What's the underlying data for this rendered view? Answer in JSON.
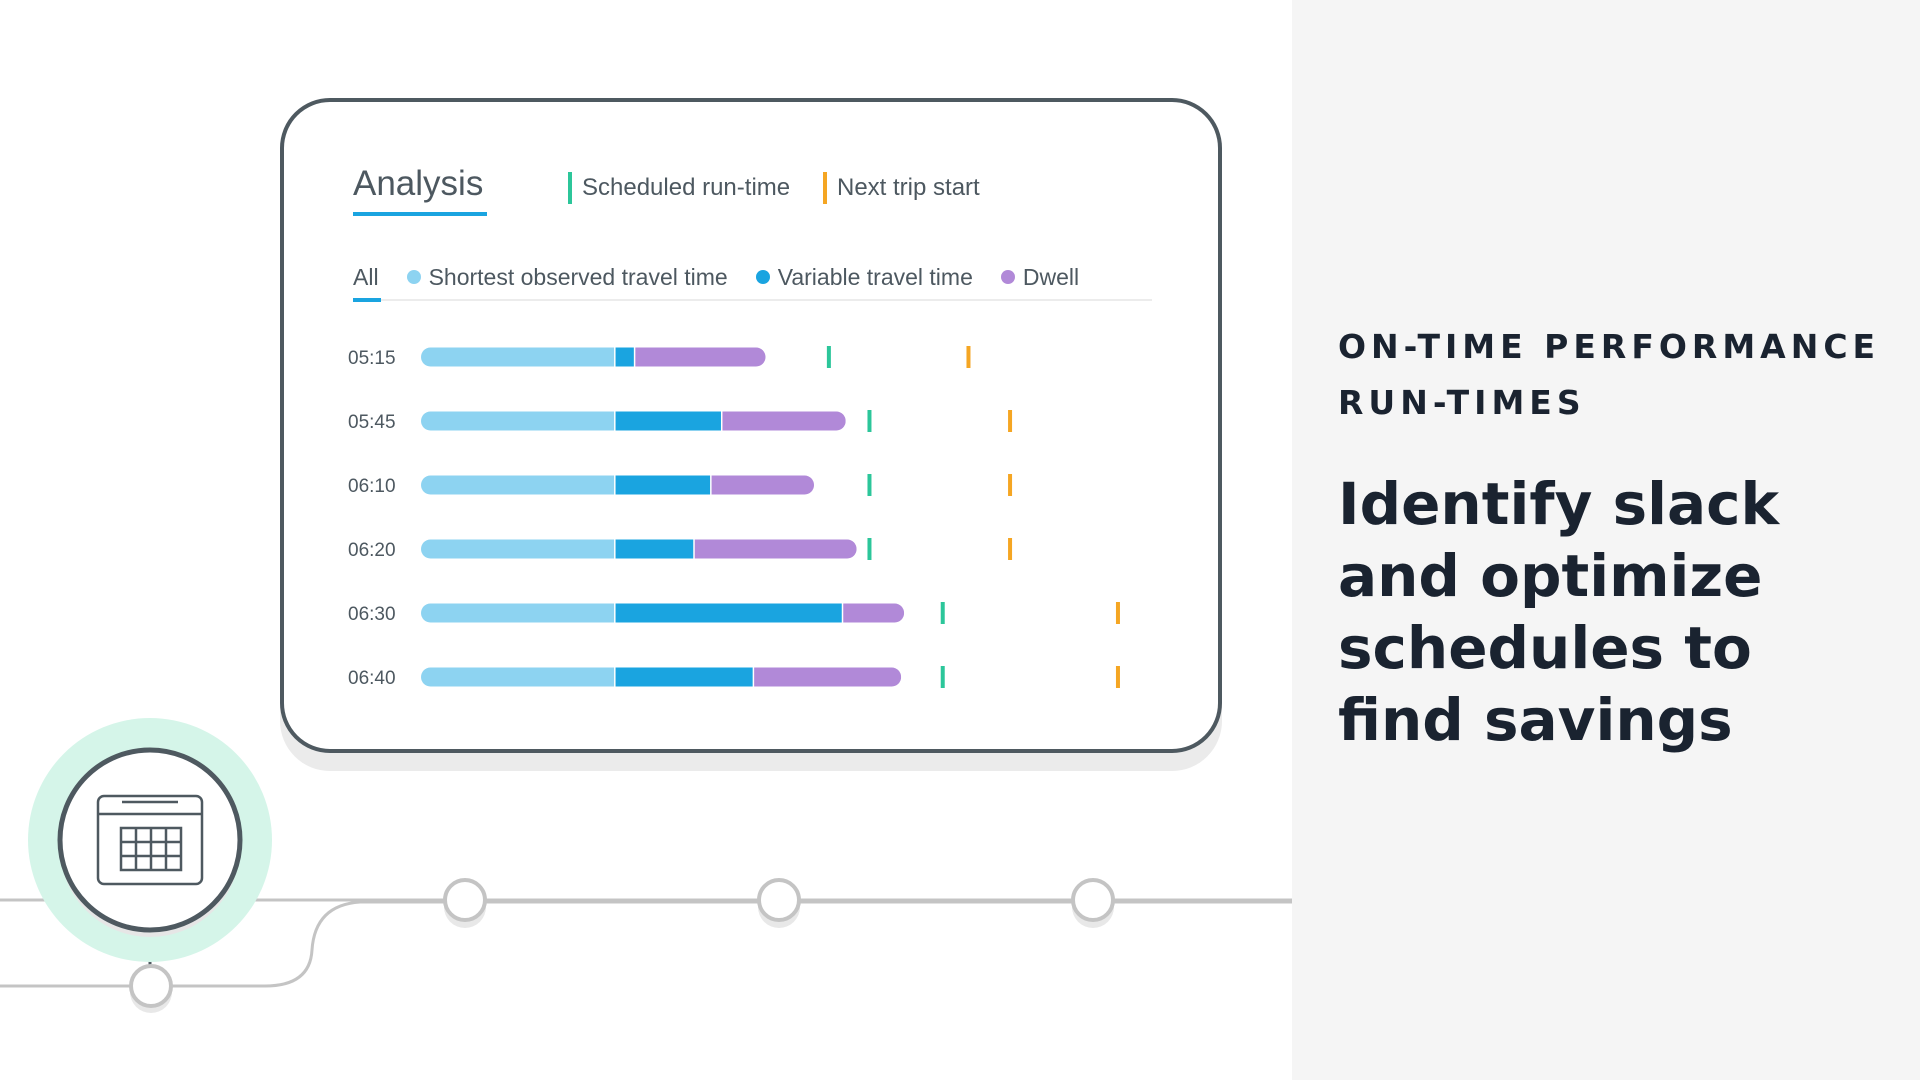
{
  "sidebar": {
    "eyebrow_line1": "ON-TIME PERFORMANCE",
    "eyebrow_line2": "RUN-TIMES",
    "headline_line1": "Identify slack",
    "headline_line2": "and optimize",
    "headline_line3": "schedules to",
    "headline_line4": "find savings"
  },
  "card": {
    "title": "Analysis",
    "legend": [
      {
        "label": "Scheduled run-time",
        "color": "#2cc69a"
      },
      {
        "label": "Next trip start",
        "color": "#f5a623"
      }
    ],
    "filter_tabs": {
      "all": "All",
      "items": [
        {
          "label": "Shortest observed travel time",
          "color": "#8dd3f1"
        },
        {
          "label": "Variable travel time",
          "color": "#1aa4e0"
        },
        {
          "label": "Dwell",
          "color": "#b189d8"
        }
      ]
    }
  },
  "icon": {
    "name": "calendar-icon",
    "halo_color": "#d5f5e9"
  },
  "chart_data": {
    "type": "bar",
    "stacked": true,
    "orientation": "horizontal",
    "categories": [
      "05:15",
      "05:45",
      "06:10",
      "06:20",
      "06:30",
      "06:40"
    ],
    "series": [
      {
        "name": "Shortest observed travel time",
        "color": "#8dd3f1",
        "values": [
          19.5,
          19.5,
          19.5,
          19.5,
          19.5,
          19.5
        ]
      },
      {
        "name": "Variable travel time",
        "color": "#1aa4e0",
        "values": [
          2.0,
          10.8,
          9.7,
          8.0,
          23.0,
          14.0
        ]
      },
      {
        "name": "Dwell",
        "color": "#b189d8",
        "values": [
          13.3,
          12.6,
          10.5,
          16.5,
          6.3,
          15.0
        ]
      }
    ],
    "markers": [
      {
        "name": "Scheduled run-time",
        "color": "#2cc69a",
        "values": [
          41.2,
          45.3,
          45.3,
          45.3,
          52.7,
          52.7
        ]
      },
      {
        "name": "Next trip start",
        "color": "#f5a623",
        "values": [
          55.3,
          59.5,
          59.5,
          59.5,
          70.4,
          70.4
        ]
      }
    ],
    "xlim": [
      0,
      75
    ],
    "grid": false,
    "legend_position": "top"
  }
}
